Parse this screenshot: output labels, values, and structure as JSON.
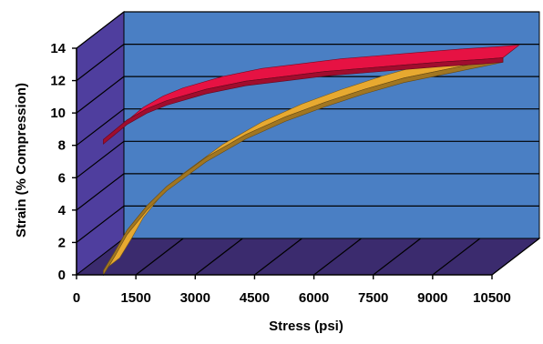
{
  "chart_data": {
    "type": "line",
    "style": "3d-ribbon",
    "xlabel": "Stress (psi)",
    "ylabel": "Strain (% Compression)",
    "xlim": [
      0,
      10500
    ],
    "ylim": [
      0,
      14
    ],
    "x_ticks": [
      "0",
      "1500",
      "3000",
      "4500",
      "6000",
      "7500",
      "9000",
      "10500"
    ],
    "y_ticks": [
      "0",
      "2",
      "4",
      "6",
      "8",
      "10",
      "12",
      "14"
    ],
    "grid": true,
    "legend": "none",
    "colors": {
      "back_wall": "#4a7fc4",
      "side_wall": "#4f3e9e",
      "floor": "#3b2b6e",
      "series_1": "#c8103a",
      "series_2": "#c9932a"
    },
    "series": [
      {
        "color": "#c8103a",
        "x": [
          400,
          700,
          1000,
          1500,
          2000,
          3000,
          4000,
          5000,
          6000,
          7000,
          8000,
          9000,
          10000,
          10500
        ],
        "values": [
          8.7,
          9.3,
          9.9,
          10.6,
          11.1,
          11.8,
          12.3,
          12.6,
          12.9,
          13.1,
          13.3,
          13.5,
          13.65,
          13.75
        ]
      },
      {
        "color": "#c9932a",
        "x": [
          400,
          700,
          1000,
          1500,
          2000,
          3000,
          4000,
          5000,
          6000,
          7000,
          8000,
          9000,
          10000,
          10500
        ],
        "values": [
          0.6,
          1.8,
          3.1,
          4.6,
          5.8,
          7.6,
          9.0,
          10.1,
          11.0,
          11.8,
          12.5,
          13.0,
          13.5,
          13.75
        ]
      }
    ]
  }
}
